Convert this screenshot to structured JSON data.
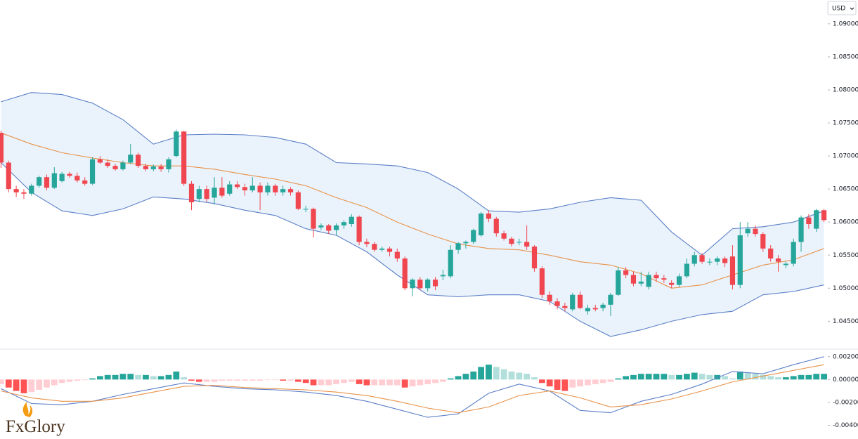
{
  "brand": "FxGlory",
  "chart_data": [
    {
      "type": "candlestick",
      "currency": "USD",
      "up_color": "#26a69a",
      "down_color": "#f0464f",
      "ylim": [
        1.041,
        1.0936
      ],
      "yticks": [
        {
          "value": 1.09,
          "label": "1.09000"
        },
        {
          "value": 1.085,
          "label": "1.08500"
        },
        {
          "value": 1.08,
          "label": "1.08000"
        },
        {
          "value": 1.075,
          "label": "1.07500"
        },
        {
          "value": 1.07,
          "label": "1.07000"
        },
        {
          "value": 1.065,
          "label": "1.06500"
        },
        {
          "value": 1.06,
          "label": "1.06000"
        },
        {
          "value": 1.055,
          "label": "1.05500"
        },
        {
          "value": 1.05,
          "label": "1.05000"
        },
        {
          "value": 1.045,
          "label": "1.04500"
        }
      ],
      "candles": [
        [
          1.0735,
          1.0738,
          1.0682,
          1.069
        ],
        [
          1.069,
          1.0693,
          1.0645,
          1.065
        ],
        [
          1.065,
          1.0655,
          1.0638,
          1.0645
        ],
        [
          1.0645,
          1.065,
          1.0635,
          1.0643
        ],
        [
          1.0643,
          1.0658,
          1.064,
          1.0655
        ],
        [
          1.0655,
          1.067,
          1.0652,
          1.0668
        ],
        [
          1.0668,
          1.0672,
          1.0648,
          1.0652
        ],
        [
          1.0652,
          1.0683,
          1.065,
          1.0674
        ],
        [
          1.0662,
          1.0676,
          1.066,
          1.0673
        ],
        [
          1.0673,
          1.0676,
          1.0667,
          1.067
        ],
        [
          1.067,
          1.0675,
          1.066,
          1.0663
        ],
        [
          1.0663,
          1.0668,
          1.0655,
          1.0658
        ],
        [
          1.0658,
          1.0698,
          1.0656,
          1.0695
        ],
        [
          1.0695,
          1.07,
          1.0688,
          1.069
        ],
        [
          1.069,
          1.0695,
          1.0682,
          1.0685
        ],
        [
          1.0685,
          1.0688,
          1.0678,
          1.068
        ],
        [
          1.068,
          1.0693,
          1.0678,
          1.069
        ],
        [
          1.069,
          1.0718,
          1.0688,
          1.0702
        ],
        [
          1.0702,
          1.0705,
          1.0682,
          1.0685
        ],
        [
          1.0685,
          1.0688,
          1.0677,
          1.068
        ],
        [
          1.068,
          1.0687,
          1.0677,
          1.0684
        ],
        [
          1.0684,
          1.0688,
          1.0676,
          1.068
        ],
        [
          1.068,
          1.0698,
          1.0675,
          1.0695
        ],
        [
          1.07,
          1.074,
          1.0698,
          1.0737
        ],
        [
          1.0737,
          1.0738,
          1.0655,
          1.0658
        ],
        [
          1.0658,
          1.0662,
          1.0618,
          1.063
        ],
        [
          1.0635,
          1.0655,
          1.063,
          1.065
        ],
        [
          1.065,
          1.0655,
          1.063,
          1.0635
        ],
        [
          1.0637,
          1.0668,
          1.0627,
          1.0652
        ],
        [
          1.0652,
          1.0668,
          1.0637,
          1.064
        ],
        [
          1.0643,
          1.0662,
          1.064,
          1.0657
        ],
        [
          1.0657,
          1.0662,
          1.065,
          1.0653
        ],
        [
          1.0653,
          1.0658,
          1.064,
          1.0648
        ],
        [
          1.0648,
          1.0668,
          1.0645,
          1.0655
        ],
        [
          1.0655,
          1.066,
          1.0618,
          1.0645
        ],
        [
          1.0645,
          1.066,
          1.064,
          1.0655
        ],
        [
          1.0655,
          1.0658,
          1.064,
          1.0645
        ],
        [
          1.0645,
          1.0655,
          1.064,
          1.065
        ],
        [
          1.065,
          1.0653,
          1.064,
          1.0645
        ],
        [
          1.0645,
          1.0648,
          1.0618,
          1.062
        ],
        [
          1.062,
          1.0625,
          1.0615,
          1.062
        ],
        [
          1.062,
          1.0622,
          1.0577,
          1.059
        ],
        [
          1.0592,
          1.0598,
          1.0588,
          1.0595
        ],
        [
          1.0595,
          1.0597,
          1.0582,
          1.0587
        ],
        [
          1.0588,
          1.0598,
          1.058,
          1.0595
        ],
        [
          1.0595,
          1.0603,
          1.059,
          1.06
        ],
        [
          1.0597,
          1.0612,
          1.0593,
          1.0608
        ],
        [
          1.0608,
          1.061,
          1.0565,
          1.057
        ],
        [
          1.057,
          1.0575,
          1.0562,
          1.0567
        ],
        [
          1.0567,
          1.057,
          1.0555,
          1.0558
        ],
        [
          1.0558,
          1.0563,
          1.0555,
          1.056
        ],
        [
          1.056,
          1.0563,
          1.0548,
          1.0555
        ],
        [
          1.0555,
          1.056,
          1.054,
          1.0545
        ],
        [
          1.0545,
          1.0548,
          1.0497,
          1.05
        ],
        [
          1.05,
          1.0515,
          1.0488,
          1.0513
        ],
        [
          1.0513,
          1.0517,
          1.0497,
          1.05
        ],
        [
          1.05,
          1.0515,
          1.0495,
          1.0513
        ],
        [
          1.0513,
          1.0517,
          1.0497,
          1.0503
        ],
        [
          1.0518,
          1.0528,
          1.0512,
          1.052
        ],
        [
          1.0518,
          1.0565,
          1.0515,
          1.0558
        ],
        [
          1.0558,
          1.057,
          1.0552,
          1.0568
        ],
        [
          1.0568,
          1.0572,
          1.056,
          1.057
        ],
        [
          1.057,
          1.059,
          1.0567,
          1.0588
        ],
        [
          1.058,
          1.0615,
          1.0578,
          1.0613
        ],
        [
          1.0613,
          1.0618,
          1.06,
          1.0605
        ],
        [
          1.0605,
          1.0608,
          1.0578,
          1.0583
        ],
        [
          1.0583,
          1.0587,
          1.0572,
          1.0575
        ],
        [
          1.0575,
          1.0578,
          1.0563,
          1.0567
        ],
        [
          1.057,
          1.0575,
          1.0565,
          1.057
        ],
        [
          1.057,
          1.0595,
          1.0558,
          1.0563
        ],
        [
          1.0563,
          1.0565,
          1.0525,
          1.053
        ],
        [
          1.053,
          1.0533,
          1.0485,
          1.049
        ],
        [
          1.049,
          1.0495,
          1.0475,
          1.048
        ],
        [
          1.048,
          1.0485,
          1.0468,
          1.0473
        ],
        [
          1.0473,
          1.0478,
          1.0465,
          1.047
        ],
        [
          1.0468,
          1.0493,
          1.0465,
          1.049
        ],
        [
          1.049,
          1.0495,
          1.0468,
          1.047
        ],
        [
          1.0465,
          1.0475,
          1.046,
          1.047
        ],
        [
          1.047,
          1.0475,
          1.0465,
          1.0468
        ],
        [
          1.047,
          1.0478,
          1.0465,
          1.0475
        ],
        [
          1.0475,
          1.0493,
          1.0458,
          1.049
        ],
        [
          1.049,
          1.0532,
          1.0488,
          1.0527
        ],
        [
          1.0527,
          1.0532,
          1.0515,
          1.052
        ],
        [
          1.052,
          1.0525,
          1.0503,
          1.0507
        ],
        [
          1.0507,
          1.0525,
          1.0503,
          1.051
        ],
        [
          1.0502,
          1.0525,
          1.0498,
          1.052
        ],
        [
          1.052,
          1.0525,
          1.051,
          1.0515
        ],
        [
          1.0515,
          1.052,
          1.0508,
          1.0513
        ],
        [
          1.0508,
          1.0512,
          1.05,
          1.0505
        ],
        [
          1.0505,
          1.0522,
          1.0502,
          1.0518
        ],
        [
          1.0518,
          1.0545,
          1.0515,
          1.0537
        ],
        [
          1.0537,
          1.0555,
          1.0533,
          1.055
        ],
        [
          1.055,
          1.0553,
          1.0537,
          1.054
        ],
        [
          1.054,
          1.0545,
          1.0535,
          1.054
        ],
        [
          1.054,
          1.0548,
          1.0535,
          1.0545
        ],
        [
          1.0545,
          1.0548,
          1.0532,
          1.0538
        ],
        [
          1.0548,
          1.0565,
          1.0498,
          1.0505
        ],
        [
          1.0505,
          1.06,
          1.05,
          1.058
        ],
        [
          1.0583,
          1.06,
          1.0578,
          1.059
        ],
        [
          1.059,
          1.0595,
          1.0578,
          1.0582
        ],
        [
          1.0582,
          1.0585,
          1.0555,
          1.056
        ],
        [
          1.056,
          1.0565,
          1.054,
          1.0545
        ],
        [
          1.0545,
          1.055,
          1.0525,
          1.054
        ],
        [
          1.0535,
          1.054,
          1.053,
          1.0537
        ],
        [
          1.0537,
          1.0575,
          1.0533,
          1.057
        ],
        [
          1.057,
          1.061,
          1.0555,
          1.0607
        ],
        [
          1.0607,
          1.0612,
          1.059,
          1.0597
        ],
        [
          1.059,
          1.062,
          1.0585,
          1.0618
        ],
        [
          1.0618,
          1.062,
          1.06,
          1.0603
        ]
      ],
      "bands": {
        "band_color": "#5b7fc7",
        "middle_color": "#e8924a",
        "fill": "#eaf3fc",
        "x": [
          0,
          4,
          8,
          12,
          16,
          20,
          24,
          28,
          32,
          36,
          40,
          44,
          48,
          52,
          56,
          60,
          64,
          68,
          72,
          76,
          80,
          84,
          88,
          92,
          96,
          100,
          104,
          108
        ],
        "upper": [
          1.0782,
          1.0796,
          1.0793,
          1.078,
          1.0755,
          1.0718,
          1.0732,
          1.0733,
          1.0732,
          1.0728,
          1.0718,
          1.069,
          1.0688,
          1.0685,
          1.0675,
          1.065,
          1.0617,
          1.0615,
          1.062,
          1.063,
          1.0637,
          1.0633,
          1.0585,
          1.055,
          1.059,
          1.0593,
          1.06,
          1.0617
        ],
        "middle": [
          1.0735,
          1.0718,
          1.0705,
          1.0697,
          1.069,
          1.0685,
          1.0685,
          1.068,
          1.0672,
          1.0665,
          1.0655,
          1.0637,
          1.0622,
          1.06,
          1.0582,
          1.0567,
          1.056,
          1.0558,
          1.055,
          1.054,
          1.0535,
          1.0522,
          1.05,
          1.0505,
          1.052,
          1.0535,
          1.0543,
          1.056
        ],
        "lower": [
          1.069,
          1.0645,
          1.0617,
          1.061,
          1.062,
          1.0638,
          1.0635,
          1.0628,
          1.0618,
          1.061,
          1.059,
          1.058,
          1.0555,
          1.052,
          1.049,
          1.0487,
          1.049,
          1.049,
          1.048,
          1.045,
          1.0427,
          1.0437,
          1.045,
          1.046,
          1.0465,
          1.049,
          1.0495,
          1.0505
        ]
      }
    },
    {
      "type": "macd",
      "ylim": [
        -0.0052,
        0.0026
      ],
      "yticks": [
        {
          "value": 0.002,
          "label": "0.00200"
        },
        {
          "value": 0,
          "label": "0.00000"
        },
        {
          "value": -0.002,
          "label": "-0.00200"
        },
        {
          "value": -0.004,
          "label": "-0.00400"
        }
      ],
      "hist_colors": {
        "pos_up": "#26a69a",
        "pos_down": "#b2dfdb",
        "neg_down": "#ff5252",
        "neg_up": "#ffcdd2"
      },
      "histogram": [
        -0.0004,
        -0.0007,
        -0.001,
        -0.0012,
        -0.0011,
        -0.0009,
        -0.0007,
        -0.0005,
        -0.0003,
        -0.0002,
        -0.0001,
        -5e-05,
        0.0001,
        0.0003,
        0.0004,
        0.0004,
        0.0005,
        0.0005,
        0.0004,
        0.0004,
        0.0003,
        0.0003,
        0.0004,
        0.0007,
        0.0002,
        -0.0001,
        -0.0002,
        -0.0002,
        -0.0002,
        -0.0001,
        -0.0001,
        -0.0001,
        -0.0001,
        -0.0001,
        -0.0001,
        -5e-05,
        -5e-05,
        -0.0001,
        -0.0001,
        -0.0002,
        -0.0003,
        -0.0005,
        -0.0005,
        -0.0005,
        -0.0004,
        -0.0003,
        -0.0002,
        -0.0004,
        -0.0005,
        -0.0005,
        -0.0005,
        -0.0005,
        -0.0005,
        -0.0007,
        -0.0006,
        -0.0005,
        -0.0004,
        -0.0003,
        -0.0002,
        0.0001,
        0.0003,
        0.0005,
        0.0007,
        0.0011,
        0.0013,
        0.0011,
        0.0009,
        0.0007,
        0.0006,
        0.0005,
        0.0002,
        -0.0003,
        -0.0006,
        -0.0009,
        -0.001,
        -0.0007,
        -0.0006,
        -0.0005,
        -0.0004,
        -0.0003,
        -0.0002,
        0.0001,
        0.0003,
        0.0004,
        0.0005,
        0.0005,
        0.0005,
        0.0005,
        0.0004,
        0.0004,
        0.0005,
        0.0006,
        0.0005,
        0.0004,
        0.0004,
        0.0003,
        0.0001,
        0.0007,
        0.0006,
        0.0005,
        0.0004,
        0.0003,
        0.0002,
        0.0002,
        0.0003,
        0.0004,
        0.0004,
        0.0005,
        0.0005
      ],
      "x": [
        0,
        4,
        8,
        12,
        16,
        20,
        24,
        28,
        32,
        36,
        40,
        44,
        48,
        52,
        56,
        60,
        64,
        68,
        72,
        76,
        80,
        84,
        88,
        92,
        96,
        100,
        104,
        108
      ],
      "macd_line": {
        "color": "#5b7fc7",
        "values": [
          -0.0008,
          -0.0021,
          -0.0022,
          -0.0019,
          -0.0013,
          -0.0008,
          -0.0003,
          -0.0006,
          -0.0008,
          -0.0009,
          -0.0011,
          -0.0014,
          -0.0019,
          -0.0026,
          -0.0033,
          -0.003,
          -0.0012,
          -0.0004,
          -0.001,
          -0.0027,
          -0.0029,
          -0.0019,
          -0.0013,
          -0.0004,
          0.0007,
          0.0005,
          0.0013,
          0.002
        ]
      },
      "signal_line": {
        "color": "#e8924a",
        "values": [
          -0.001,
          -0.0016,
          -0.0019,
          -0.0019,
          -0.0016,
          -0.0011,
          -0.0006,
          -0.0005,
          -0.0007,
          -0.0008,
          -0.0009,
          -0.0011,
          -0.0014,
          -0.0019,
          -0.0025,
          -0.0029,
          -0.0024,
          -0.0014,
          -0.001,
          -0.0016,
          -0.0024,
          -0.0022,
          -0.0017,
          -0.001,
          -0.0002,
          0.0003,
          0.0008,
          0.0013
        ]
      }
    }
  ]
}
